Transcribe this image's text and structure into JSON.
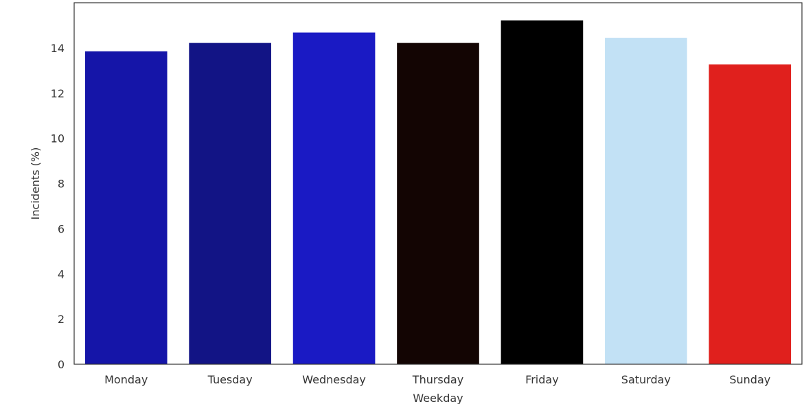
{
  "chart_data": {
    "type": "bar",
    "categories": [
      "Monday",
      "Tuesday",
      "Wednesday",
      "Thursday",
      "Friday",
      "Saturday",
      "Sunday"
    ],
    "values": [
      13.85,
      14.22,
      14.68,
      14.22,
      15.22,
      14.45,
      13.27
    ],
    "colors": [
      "#1515a8",
      "#121485",
      "#1a1ac4",
      "#130503",
      "#000000",
      "#c2e1f5",
      "#e0201d"
    ],
    "xlabel": "Weekday",
    "ylabel": "Incidents (%)",
    "ylim": [
      0,
      16
    ],
    "yticks": [
      0,
      2,
      4,
      6,
      8,
      10,
      12,
      14
    ],
    "grid": false
  }
}
